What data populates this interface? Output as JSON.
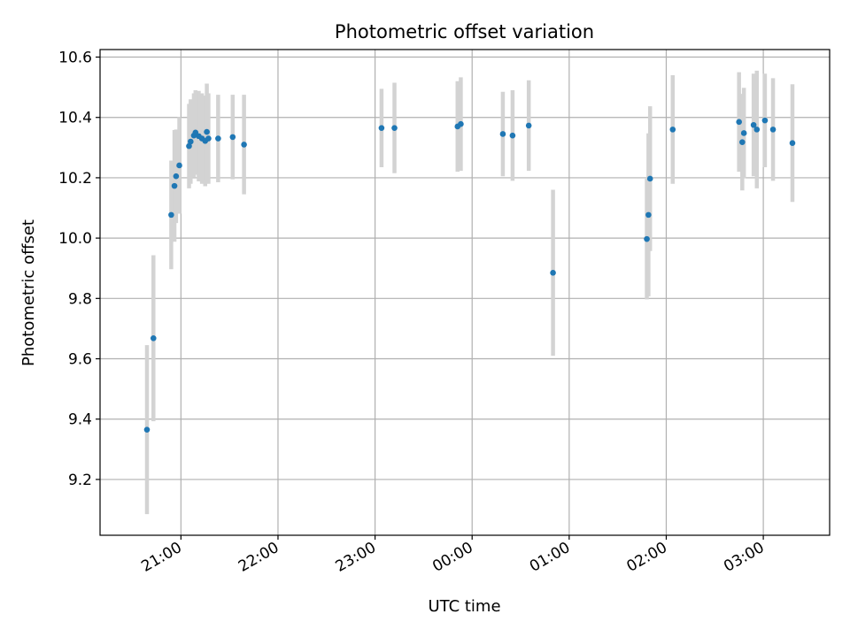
{
  "chart_data": {
    "type": "scatter",
    "title": "Photometric offset variation",
    "xlabel": "UTC time",
    "ylabel": "Photometric offset",
    "x_axis_kind": "time",
    "x_domain": [
      "20:10",
      "03:41"
    ],
    "ylim": [
      9.015,
      10.625
    ],
    "grid": true,
    "x_ticks": [
      {
        "time": "21:00",
        "label": "21:00"
      },
      {
        "time": "22:00",
        "label": "22:00"
      },
      {
        "time": "23:00",
        "label": "23:00"
      },
      {
        "time": "00:00",
        "label": "00:00"
      },
      {
        "time": "01:00",
        "label": "01:00"
      },
      {
        "time": "02:00",
        "label": "02:00"
      },
      {
        "time": "03:00",
        "label": "03:00"
      }
    ],
    "y_ticks": [
      9.2,
      9.4,
      9.6,
      9.8,
      10.0,
      10.2,
      10.4,
      10.6
    ],
    "colors": {
      "point": "#1f77b4",
      "errorbar": "#d3d3d3",
      "grid": "#b0b0b0"
    },
    "points": [
      {
        "x": "20:39",
        "y": 9.365,
        "yerr": 0.28
      },
      {
        "x": "20:43",
        "y": 9.668,
        "yerr": 0.275
      },
      {
        "x": "20:54",
        "y": 10.077,
        "yerr": 0.18
      },
      {
        "x": "20:56",
        "y": 10.173,
        "yerr": 0.185
      },
      {
        "x": "20:57",
        "y": 10.205,
        "yerr": 0.155
      },
      {
        "x": "20:59",
        "y": 10.241,
        "yerr": 0.16
      },
      {
        "x": "21:05",
        "y": 10.305,
        "yerr": 0.14
      },
      {
        "x": "21:06",
        "y": 10.32,
        "yerr": 0.14
      },
      {
        "x": "21:08",
        "y": 10.34,
        "yerr": 0.14
      },
      {
        "x": "21:09",
        "y": 10.35,
        "yerr": 0.14
      },
      {
        "x": "21:11",
        "y": 10.338,
        "yerr": 0.15
      },
      {
        "x": "21:13",
        "y": 10.33,
        "yerr": 0.15
      },
      {
        "x": "21:15",
        "y": 10.322,
        "yerr": 0.15
      },
      {
        "x": "21:16",
        "y": 10.352,
        "yerr": 0.16
      },
      {
        "x": "21:17",
        "y": 10.33,
        "yerr": 0.15
      },
      {
        "x": "21:23",
        "y": 10.33,
        "yerr": 0.145
      },
      {
        "x": "21:32",
        "y": 10.335,
        "yerr": 0.14
      },
      {
        "x": "21:39",
        "y": 10.31,
        "yerr": 0.165
      },
      {
        "x": "23:04",
        "y": 10.365,
        "yerr": 0.13
      },
      {
        "x": "23:12",
        "y": 10.365,
        "yerr": 0.15
      },
      {
        "x": "23:51",
        "y": 10.37,
        "yerr": 0.15
      },
      {
        "x": "23:53",
        "y": 10.378,
        "yerr": 0.155
      },
      {
        "x": "00:19",
        "y": 10.345,
        "yerr": 0.14
      },
      {
        "x": "00:25",
        "y": 10.34,
        "yerr": 0.15
      },
      {
        "x": "00:35",
        "y": 10.373,
        "yerr": 0.15
      },
      {
        "x": "00:50",
        "y": 9.885,
        "yerr": 0.275
      },
      {
        "x": "01:48",
        "y": 9.997,
        "yerr": 0.2
      },
      {
        "x": "01:49",
        "y": 10.077,
        "yerr": 0.27
      },
      {
        "x": "01:50",
        "y": 10.197,
        "yerr": 0.24
      },
      {
        "x": "02:04",
        "y": 10.36,
        "yerr": 0.18
      },
      {
        "x": "02:45",
        "y": 10.385,
        "yerr": 0.165
      },
      {
        "x": "02:47",
        "y": 10.318,
        "yerr": 0.16
      },
      {
        "x": "02:48",
        "y": 10.348,
        "yerr": 0.15
      },
      {
        "x": "02:54",
        "y": 10.375,
        "yerr": 0.17
      },
      {
        "x": "02:56",
        "y": 10.36,
        "yerr": 0.195
      },
      {
        "x": "03:01",
        "y": 10.39,
        "yerr": 0.155
      },
      {
        "x": "03:06",
        "y": 10.36,
        "yerr": 0.17
      },
      {
        "x": "03:18",
        "y": 10.315,
        "yerr": 0.195
      }
    ]
  }
}
